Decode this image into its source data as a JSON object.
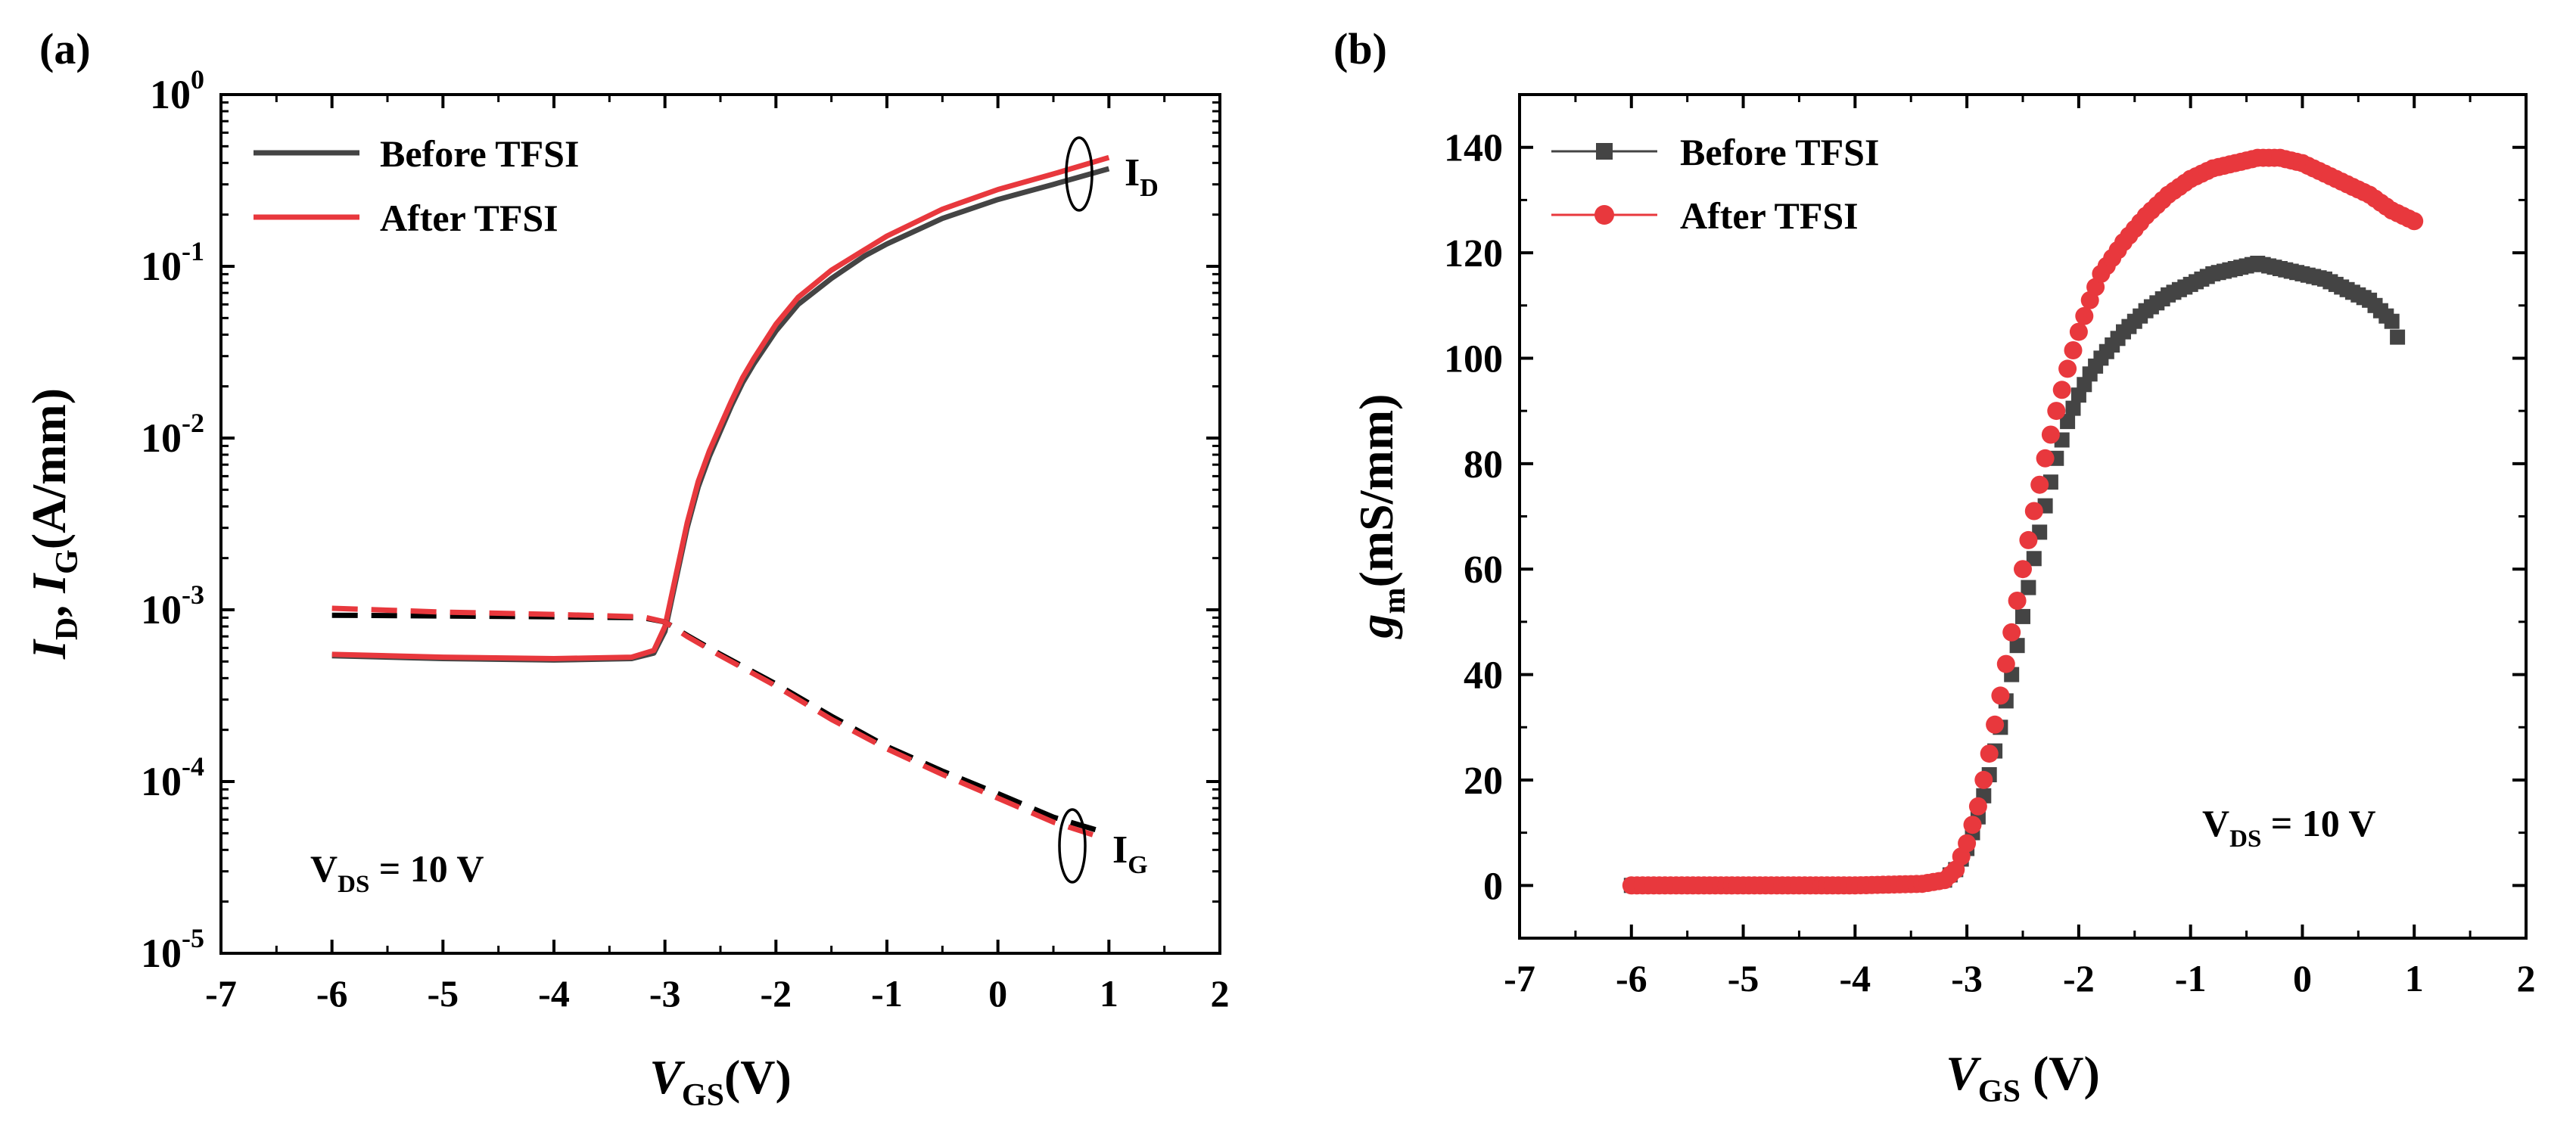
{
  "chart_data": [
    {
      "panel_label": "(a)",
      "type": "line",
      "y_scale": "log",
      "xlabel": {
        "main": "V",
        "sub": "GS",
        "tail": "(V)"
      },
      "ylabel": {
        "p1": "I",
        "s1": "D",
        "mid": ", ",
        "p2": "I",
        "s2": "G",
        "tail": "(A/mm)"
      },
      "xlim": [
        -7,
        2
      ],
      "ylim": [
        1e-05,
        1
      ],
      "x_ticks": [
        -7,
        -6,
        -5,
        -4,
        -3,
        -2,
        -1,
        0,
        1,
        2
      ],
      "x_tick_labels": [
        "-7",
        "-6",
        "-5",
        "-4",
        "-3",
        "-2",
        "-1",
        "0",
        "1",
        "2"
      ],
      "y_ticks": [
        {
          "value": 1,
          "base": "10",
          "exp": "0"
        },
        {
          "value": 0.1,
          "base": "10",
          "exp": "-1"
        },
        {
          "value": 0.01,
          "base": "10",
          "exp": "-2"
        },
        {
          "value": 0.001,
          "base": "10",
          "exp": "-3"
        },
        {
          "value": 0.0001,
          "base": "10",
          "exp": "-4"
        },
        {
          "value": 1e-05,
          "base": "10",
          "exp": "-5"
        }
      ],
      "legend_position": "top-left",
      "series": [
        {
          "name": "Before TFSI",
          "color": "#444444",
          "style": "solid",
          "x": [
            -6,
            -5,
            -4,
            -3.3,
            -3.1,
            -3.0,
            -2.9,
            -2.8,
            -2.7,
            -2.6,
            -2.5,
            -2.4,
            -2.3,
            -2.2,
            -2.0,
            -1.8,
            -1.5,
            -1.2,
            -1.0,
            -0.5,
            0.0,
            0.5,
            1.0
          ],
          "y": [
            0.00054,
            0.00052,
            0.00051,
            0.00052,
            0.00056,
            0.00075,
            0.0015,
            0.003,
            0.0052,
            0.0078,
            0.011,
            0.0155,
            0.021,
            0.027,
            0.042,
            0.06,
            0.085,
            0.115,
            0.135,
            0.19,
            0.245,
            0.3,
            0.37
          ]
        },
        {
          "name": "After TFSI",
          "color": "#e8383d",
          "style": "solid",
          "x": [
            -6,
            -5,
            -4,
            -3.3,
            -3.1,
            -3.0,
            -2.9,
            -2.8,
            -2.7,
            -2.6,
            -2.5,
            -2.4,
            -2.3,
            -2.2,
            -2.0,
            -1.8,
            -1.5,
            -1.2,
            -1.0,
            -0.5,
            0.0,
            0.5,
            1.0
          ],
          "y": [
            0.00055,
            0.00053,
            0.00052,
            0.00053,
            0.00058,
            0.0008,
            0.0016,
            0.0032,
            0.0056,
            0.0084,
            0.0118,
            0.0165,
            0.0225,
            0.029,
            0.046,
            0.066,
            0.095,
            0.125,
            0.15,
            0.215,
            0.28,
            0.345,
            0.43
          ]
        },
        {
          "name": "Before TFSI (I_G)",
          "color": "#000000",
          "style": "dashed",
          "x": [
            -6,
            -5,
            -4,
            -3.2,
            -3.0,
            -2.8,
            -2.5,
            -2.0,
            -1.5,
            -1.0,
            -0.5,
            0.0,
            0.5,
            0.9
          ],
          "y": [
            0.00093,
            0.00092,
            0.00091,
            0.0009,
            0.00085,
            0.00071,
            0.00055,
            0.00037,
            0.00024,
            0.00016,
            0.000115,
            8.5e-05,
            6.2e-05,
            5.2e-05
          ]
        },
        {
          "name": "After TFSI (I_G)",
          "color": "#e8383d",
          "style": "dashed",
          "x": [
            -6,
            -5,
            -4,
            -3.2,
            -3.0,
            -2.8,
            -2.5,
            -2.0,
            -1.5,
            -1.0,
            -0.5,
            0.0,
            0.5,
            0.9
          ],
          "y": [
            0.00102,
            0.00097,
            0.00094,
            0.00091,
            0.00085,
            0.0007,
            0.00054,
            0.00036,
            0.00023,
            0.000155,
            0.00011,
            8e-05,
            5.8e-05,
            4.8e-05
          ]
        }
      ],
      "annotations": [
        {
          "base": "I",
          "sub": "D",
          "at": [
            1.2,
            0.3
          ]
        },
        {
          "base": "I",
          "sub": "G",
          "at": [
            1.05,
            5e-05
          ]
        },
        {
          "base": "V",
          "sub": "DS",
          "tail": " = 10 V",
          "at": [
            -6.2,
            2.5e-05
          ]
        }
      ]
    },
    {
      "panel_label": "(b)",
      "type": "scatter",
      "y_scale": "linear",
      "xlabel": {
        "main": "V",
        "sub": "GS",
        "tail": " (V)"
      },
      "ylabel": {
        "main": "g",
        "sub": "m",
        "tail": "(mS/mm)"
      },
      "xlim": [
        -7,
        2
      ],
      "ylim": [
        -10,
        150
      ],
      "x_ticks": [
        -7,
        -6,
        -5,
        -4,
        -3,
        -2,
        -1,
        0,
        1,
        2
      ],
      "x_tick_labels": [
        "-7",
        "-6",
        "-5",
        "-4",
        "-3",
        "-2",
        "-1",
        "0",
        "1",
        "2"
      ],
      "y_ticks": [
        0,
        20,
        40,
        60,
        80,
        100,
        120,
        140
      ],
      "y_tick_labels": [
        "0",
        "20",
        "40",
        "60",
        "80",
        "100",
        "120",
        "140"
      ],
      "legend_position": "top-left",
      "series": [
        {
          "name": "Before TFSI",
          "color": "#444444",
          "marker": "square",
          "x": [
            -6.0,
            -5.0,
            -4.0,
            -3.4,
            -3.2,
            -3.1,
            -3.0,
            -2.9,
            -2.8,
            -2.7,
            -2.6,
            -2.5,
            -2.4,
            -2.3,
            -2.2,
            -2.1,
            -2.0,
            -1.9,
            -1.8,
            -1.6,
            -1.4,
            -1.2,
            -1.0,
            -0.8,
            -0.6,
            -0.4,
            -0.2,
            0.0,
            0.2,
            0.4,
            0.6,
            0.8,
            0.85
          ],
          "y": [
            0,
            0,
            0,
            0.3,
            1,
            3,
            7,
            13,
            21,
            30,
            40,
            51,
            62,
            72,
            81,
            88,
            93,
            97,
            100,
            105,
            109,
            112,
            114,
            116,
            117,
            118,
            117,
            116,
            115,
            113,
            111,
            107,
            104
          ]
        },
        {
          "name": "After TFSI",
          "color": "#e8383d",
          "marker": "circle",
          "x": [
            -6.0,
            -5.0,
            -4.0,
            -3.4,
            -3.2,
            -3.1,
            -3.0,
            -2.9,
            -2.8,
            -2.7,
            -2.6,
            -2.5,
            -2.4,
            -2.3,
            -2.2,
            -2.1,
            -2.0,
            -1.9,
            -1.8,
            -1.6,
            -1.4,
            -1.2,
            -1.0,
            -0.8,
            -0.6,
            -0.4,
            -0.3,
            -0.2,
            0.0,
            0.2,
            0.4,
            0.6,
            0.8,
            1.0
          ],
          "y": [
            0,
            0,
            0,
            0.3,
            1,
            3,
            8,
            15,
            25,
            36,
            48,
            60,
            71,
            81,
            90,
            98,
            105,
            111,
            116,
            122,
            127,
            131,
            134,
            136,
            137,
            138,
            138,
            138,
            137,
            135,
            133,
            131,
            128,
            126
          ]
        }
      ],
      "annotations": [
        {
          "base": "V",
          "sub": "DS",
          "tail": " = 10 V",
          "at": [
            -0.4,
            10
          ]
        }
      ]
    }
  ]
}
